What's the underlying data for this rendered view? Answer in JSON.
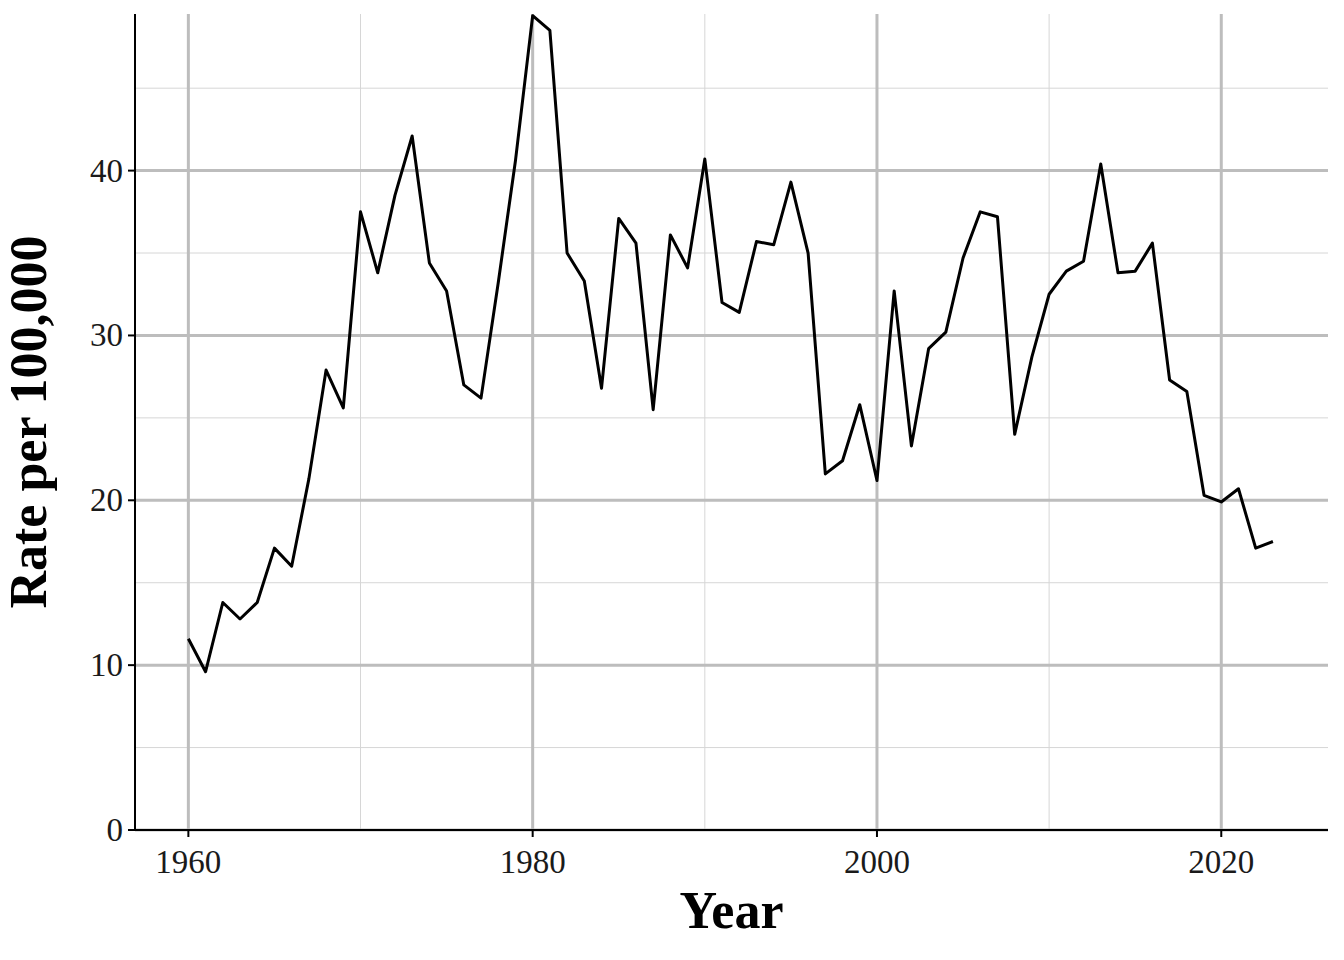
{
  "chart_data": {
    "type": "line",
    "x_label": "Year",
    "y_label": "Rate per 100,000",
    "x": [
      1960,
      1961,
      1962,
      1963,
      1964,
      1965,
      1966,
      1967,
      1968,
      1969,
      1970,
      1971,
      1972,
      1973,
      1974,
      1975,
      1976,
      1977,
      1978,
      1979,
      1980,
      1981,
      1982,
      1983,
      1984,
      1985,
      1986,
      1987,
      1988,
      1989,
      1990,
      1991,
      1992,
      1993,
      1994,
      1995,
      1996,
      1997,
      1998,
      1999,
      2000,
      2001,
      2002,
      2003,
      2004,
      2005,
      2006,
      2007,
      2008,
      2009,
      2010,
      2011,
      2012,
      2013,
      2014,
      2015,
      2016,
      2017,
      2018,
      2019,
      2020,
      2021,
      2022,
      2023
    ],
    "values": [
      11.6,
      9.6,
      13.8,
      12.8,
      13.8,
      17.1,
      16.0,
      21.3,
      27.9,
      25.6,
      37.5,
      33.8,
      38.5,
      42.1,
      34.4,
      32.7,
      27.0,
      26.2,
      33.2,
      40.6,
      49.4,
      48.5,
      35.0,
      33.3,
      26.8,
      37.1,
      35.6,
      25.5,
      36.1,
      34.1,
      40.7,
      32.0,
      31.4,
      35.7,
      35.5,
      39.3,
      35.0,
      21.6,
      22.4,
      25.8,
      21.2,
      32.7,
      23.3,
      29.2,
      30.2,
      34.7,
      37.5,
      37.2,
      24.0,
      28.7,
      32.5,
      33.9,
      34.5,
      40.4,
      33.8,
      33.9,
      35.6,
      27.3,
      26.6,
      20.3,
      19.9,
      20.7,
      17.1,
      17.5
    ],
    "color": "#000000",
    "xlim": [
      1956.9,
      2026.2
    ],
    "ylim": [
      0,
      49.5
    ],
    "xticks": [
      1960,
      1980,
      2000,
      2020
    ],
    "yticks": [
      0,
      10,
      20,
      30,
      40
    ],
    "grid": true
  }
}
